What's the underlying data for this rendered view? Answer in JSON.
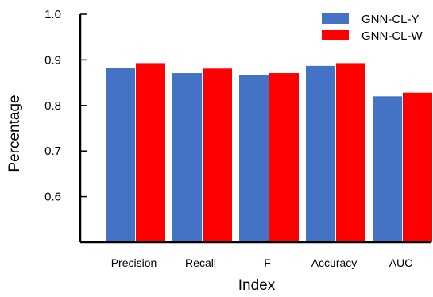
{
  "chart_data": {
    "type": "bar",
    "title": "",
    "xlabel": "Index",
    "ylabel": "Percentage",
    "categories": [
      "Precision",
      "Recall",
      "F",
      "Accuracy",
      "AUC"
    ],
    "series": [
      {
        "name": "GNN-CL-Y",
        "color": "#4472C4",
        "values": [
          0.882,
          0.871,
          0.866,
          0.887,
          0.82
        ]
      },
      {
        "name": "GNN-CL-W",
        "color": "#FF0000",
        "values": [
          0.893,
          0.881,
          0.871,
          0.893,
          0.828
        ]
      }
    ],
    "ylim": [
      0.5,
      1.0
    ],
    "yticks": [
      0.6,
      0.7,
      0.8,
      0.9,
      1.0
    ],
    "ytick_labels": [
      "0.6",
      "0.7",
      "0.8",
      "0.9",
      "1.0"
    ],
    "grid": false,
    "legend_position": "top-right"
  }
}
